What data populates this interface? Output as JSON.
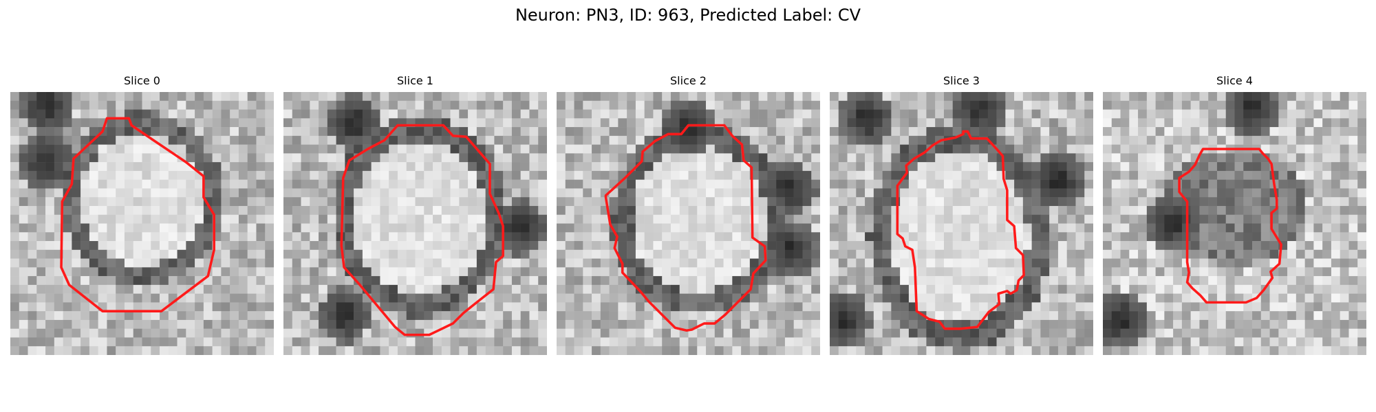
{
  "figure": {
    "title": "Neuron: PN3, ID: 963, Predicted Label: CV"
  },
  "colors": {
    "background": "#ffffff",
    "contour": "#ff1a1a"
  },
  "slices": [
    {
      "title": "Slice 0"
    },
    {
      "title": "Slice 1"
    },
    {
      "title": "Slice 2"
    },
    {
      "title": "Slice 3"
    },
    {
      "title": "Slice 4"
    }
  ]
}
